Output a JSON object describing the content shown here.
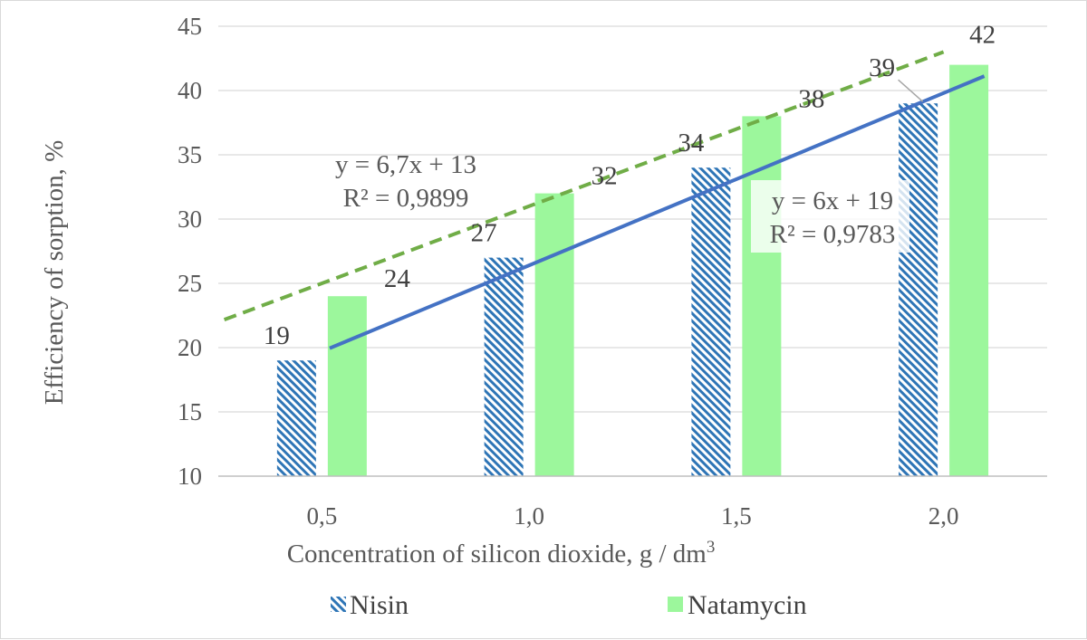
{
  "chart_data": {
    "type": "bar",
    "categories": [
      "0,5",
      "1,0",
      "1,5",
      "2,0"
    ],
    "series": [
      {
        "name": "Nisin",
        "values": [
          19,
          27,
          34,
          39
        ],
        "color": "#2e75b6",
        "pattern": "diagonal-hatch"
      },
      {
        "name": "Natamycin",
        "values": [
          24,
          32,
          38,
          42
        ],
        "color": "#9cf79c",
        "pattern": "solid"
      }
    ],
    "data_labels": {
      "Nisin": [
        "19",
        "27",
        "34",
        "39"
      ],
      "Natamycin": [
        "24",
        "32",
        "38",
        "42"
      ]
    },
    "trendlines": [
      {
        "series": "Nisin",
        "type": "linear",
        "equation": "y = 6x + 19",
        "r2": "R² = 0,9783",
        "color": "#4472c4",
        "style": "solid"
      },
      {
        "series": "Natamycin",
        "type": "linear",
        "equation": "y = 6,7x + 13",
        "r2": "R² = 0,9899",
        "color": "#70ad47",
        "style": "dashed"
      }
    ],
    "ylabel": "Efficiency of sorption, %",
    "xlabel": "Concentration of silicon dioxide, g / dm",
    "xlabel_superscript": "3",
    "ylim": [
      10,
      45
    ],
    "yticks": [
      "10",
      "15",
      "20",
      "25",
      "30",
      "35",
      "40",
      "45"
    ],
    "grid": true,
    "legend_position": "bottom"
  }
}
